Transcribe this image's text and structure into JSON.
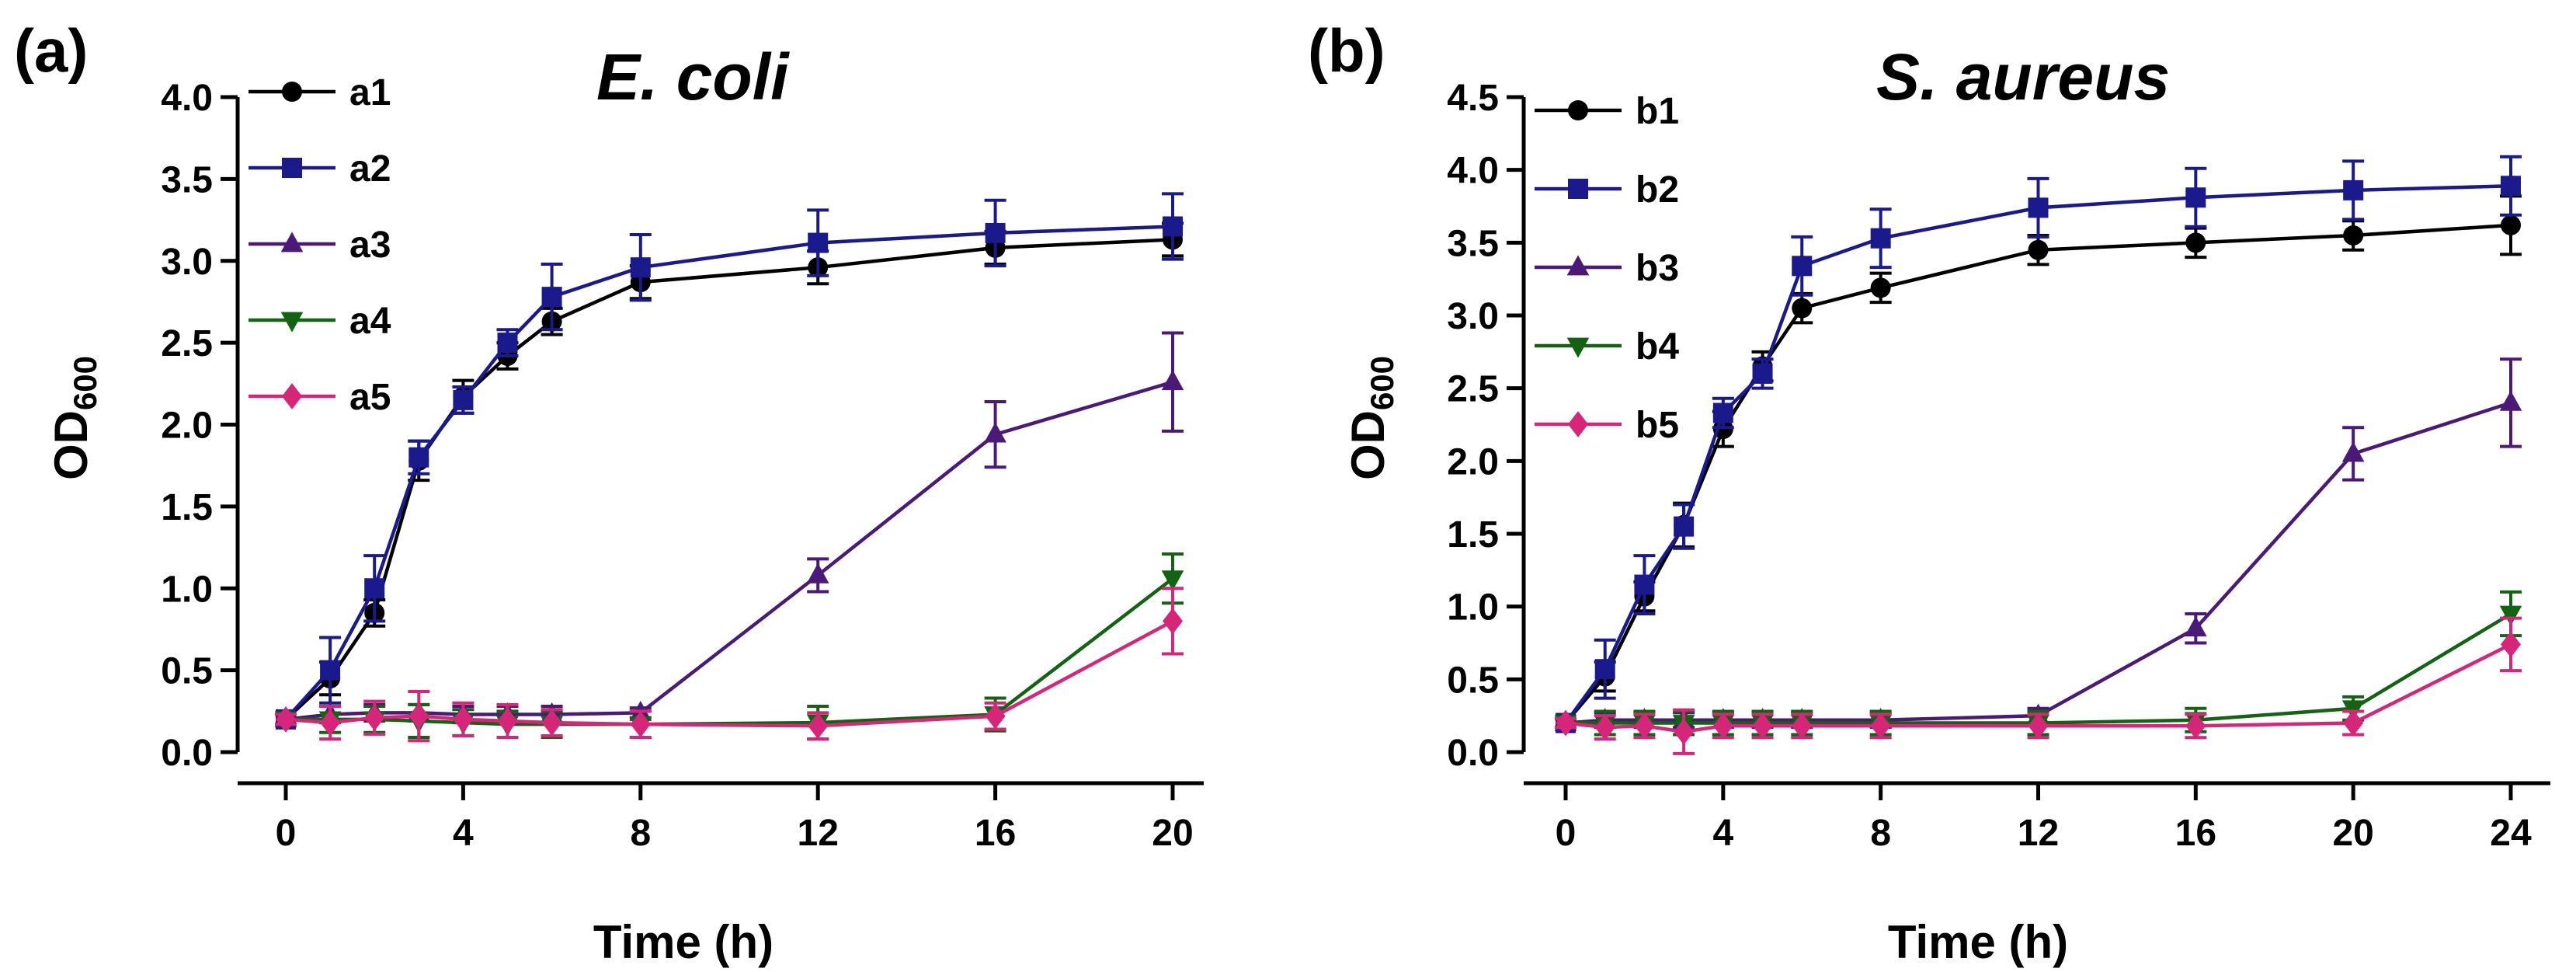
{
  "chart_data": [
    {
      "panel_label": "(a)",
      "type": "line",
      "title": "E. coli",
      "xlabel": "Time (h)",
      "ylabel_main": "OD",
      "ylabel_sub": "600",
      "xlim": [
        0,
        20
      ],
      "ylim": [
        0,
        4.0
      ],
      "xticks": [
        0,
        4,
        8,
        12,
        16,
        20
      ],
      "xtick_labels": [
        "0",
        "4",
        "8",
        "12",
        "16",
        "20"
      ],
      "yticks": [
        0,
        0.5,
        1.0,
        1.5,
        2.0,
        2.5,
        3.0,
        3.5,
        4.0
      ],
      "ytick_labels": [
        "0.0",
        "0.5",
        "1.0",
        "1.5",
        "2.0",
        "2.5",
        "3.0",
        "3.5",
        "4.0"
      ],
      "legend_position": "top-left",
      "series": [
        {
          "name": "a1",
          "marker": "circle",
          "color": "#000000",
          "x": [
            0,
            1,
            2,
            3,
            4,
            5,
            6,
            8,
            12,
            16,
            20
          ],
          "y": [
            0.2,
            0.45,
            0.85,
            1.78,
            2.17,
            2.42,
            2.63,
            2.87,
            2.96,
            3.08,
            3.13
          ],
          "err": [
            0.03,
            0.1,
            0.08,
            0.12,
            0.1,
            0.08,
            0.08,
            0.1,
            0.1,
            0.1,
            0.1
          ]
        },
        {
          "name": "a2",
          "marker": "square",
          "color": "#1a1a8c",
          "x": [
            0,
            1,
            2,
            3,
            4,
            5,
            6,
            8,
            12,
            16,
            20
          ],
          "y": [
            0.2,
            0.5,
            1.0,
            1.8,
            2.15,
            2.5,
            2.78,
            2.96,
            3.11,
            3.17,
            3.21
          ],
          "err": [
            0.03,
            0.2,
            0.2,
            0.1,
            0.08,
            0.08,
            0.2,
            0.2,
            0.2,
            0.2,
            0.2
          ]
        },
        {
          "name": "a3",
          "marker": "triangle-up",
          "color": "#4b1a78",
          "x": [
            0,
            1,
            2,
            3,
            4,
            5,
            6,
            8,
            12,
            16,
            20
          ],
          "y": [
            0.2,
            0.23,
            0.24,
            0.24,
            0.23,
            0.23,
            0.23,
            0.24,
            1.08,
            1.94,
            2.26
          ],
          "err": [
            0.03,
            0.05,
            0.05,
            0.05,
            0.05,
            0.05,
            0.05,
            0.03,
            0.1,
            0.2,
            0.3
          ]
        },
        {
          "name": "a4",
          "marker": "triangle-down",
          "color": "#136313",
          "x": [
            0,
            1,
            2,
            3,
            4,
            5,
            6,
            8,
            12,
            16,
            20
          ],
          "y": [
            0.2,
            0.2,
            0.2,
            0.19,
            0.18,
            0.17,
            0.17,
            0.17,
            0.18,
            0.23,
            1.06
          ],
          "err": [
            0.03,
            0.08,
            0.08,
            0.1,
            0.08,
            0.08,
            0.08,
            0.08,
            0.1,
            0.1,
            0.15
          ]
        },
        {
          "name": "a5",
          "marker": "diamond",
          "color": "#d6267a",
          "x": [
            0,
            1,
            2,
            3,
            4,
            5,
            6,
            8,
            12,
            16,
            20
          ],
          "y": [
            0.2,
            0.18,
            0.21,
            0.22,
            0.2,
            0.19,
            0.18,
            0.17,
            0.16,
            0.22,
            0.8
          ],
          "err": [
            0.03,
            0.1,
            0.1,
            0.15,
            0.1,
            0.1,
            0.08,
            0.08,
            0.08,
            0.08,
            0.2
          ]
        }
      ]
    },
    {
      "panel_label": "(b)",
      "type": "line",
      "title": "S. aureus",
      "xlabel": "Time (h)",
      "ylabel_main": "OD",
      "ylabel_sub": "600",
      "xlim": [
        0,
        24
      ],
      "ylim": [
        0,
        4.5
      ],
      "xticks": [
        0,
        4,
        8,
        12,
        16,
        20,
        24
      ],
      "xtick_labels": [
        "0",
        "4",
        "8",
        "12",
        "16",
        "20",
        "24"
      ],
      "yticks": [
        0,
        0.5,
        1.0,
        1.5,
        2.0,
        2.5,
        3.0,
        3.5,
        4.0,
        4.5
      ],
      "ytick_labels": [
        "0.0",
        "0.5",
        "1.0",
        "1.5",
        "2.0",
        "2.5",
        "3.0",
        "3.5",
        "4.0",
        "4.5"
      ],
      "legend_position": "top-left",
      "series": [
        {
          "name": "b1",
          "marker": "circle",
          "color": "#000000",
          "x": [
            0,
            1,
            2,
            3,
            4,
            5,
            6,
            8,
            12,
            16,
            20,
            24
          ],
          "y": [
            0.2,
            0.52,
            1.07,
            1.56,
            2.22,
            2.65,
            3.05,
            3.19,
            3.45,
            3.5,
            3.55,
            3.62
          ],
          "err": [
            0.03,
            0.1,
            0.1,
            0.15,
            0.12,
            0.1,
            0.1,
            0.1,
            0.1,
            0.1,
            0.1,
            0.2
          ]
        },
        {
          "name": "b2",
          "marker": "square",
          "color": "#1a1a8c",
          "x": [
            0,
            1,
            2,
            3,
            4,
            5,
            6,
            8,
            12,
            16,
            20,
            24
          ],
          "y": [
            0.2,
            0.57,
            1.15,
            1.55,
            2.33,
            2.6,
            3.34,
            3.53,
            3.74,
            3.81,
            3.86,
            3.89
          ],
          "err": [
            0.03,
            0.2,
            0.2,
            0.15,
            0.1,
            0.1,
            0.2,
            0.2,
            0.2,
            0.2,
            0.2,
            0.2
          ]
        },
        {
          "name": "b3",
          "marker": "triangle-up",
          "color": "#4b1a78",
          "x": [
            0,
            1,
            2,
            3,
            4,
            5,
            6,
            8,
            12,
            16,
            20,
            24
          ],
          "y": [
            0.2,
            0.22,
            0.22,
            0.22,
            0.22,
            0.22,
            0.22,
            0.22,
            0.25,
            0.85,
            2.05,
            2.4
          ],
          "err": [
            0.03,
            0.05,
            0.05,
            0.05,
            0.05,
            0.05,
            0.05,
            0.05,
            0.05,
            0.1,
            0.18,
            0.3
          ]
        },
        {
          "name": "b4",
          "marker": "triangle-down",
          "color": "#136313",
          "x": [
            0,
            1,
            2,
            3,
            4,
            5,
            6,
            8,
            12,
            16,
            20,
            24
          ],
          "y": [
            0.2,
            0.2,
            0.2,
            0.2,
            0.2,
            0.2,
            0.2,
            0.2,
            0.2,
            0.22,
            0.3,
            0.95
          ],
          "err": [
            0.03,
            0.08,
            0.08,
            0.08,
            0.08,
            0.08,
            0.08,
            0.08,
            0.08,
            0.08,
            0.08,
            0.15
          ]
        },
        {
          "name": "b5",
          "marker": "diamond",
          "color": "#d6267a",
          "x": [
            0,
            1,
            2,
            3,
            4,
            5,
            6,
            8,
            12,
            16,
            20,
            24
          ],
          "y": [
            0.2,
            0.17,
            0.18,
            0.14,
            0.18,
            0.18,
            0.18,
            0.18,
            0.18,
            0.18,
            0.2,
            0.74
          ],
          "err": [
            0.03,
            0.08,
            0.08,
            0.15,
            0.08,
            0.08,
            0.08,
            0.08,
            0.08,
            0.08,
            0.08,
            0.18
          ]
        }
      ]
    }
  ]
}
